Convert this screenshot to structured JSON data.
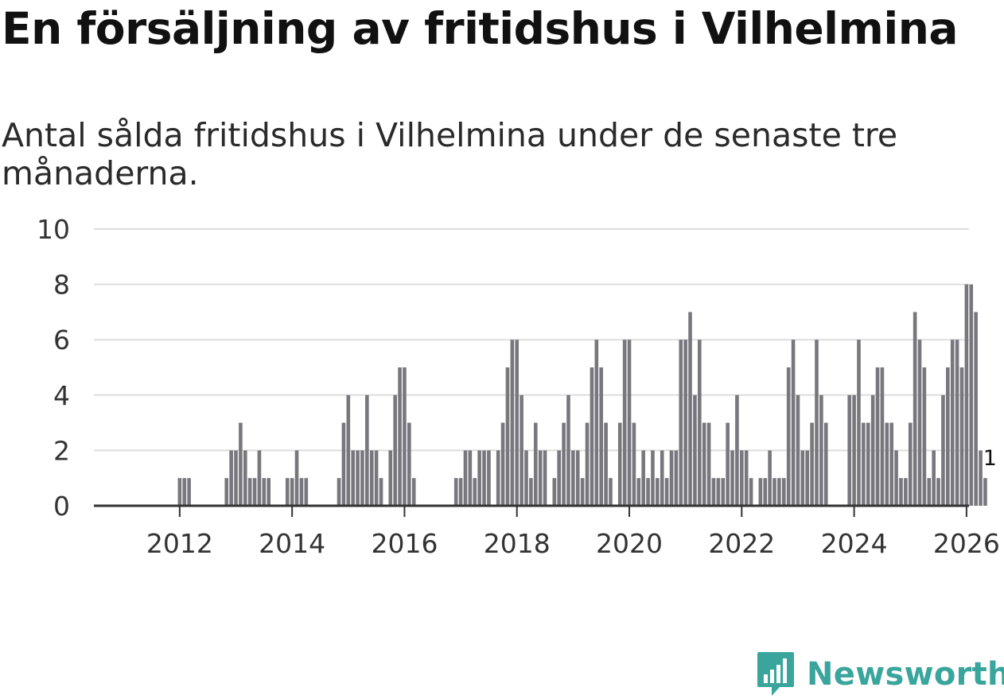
{
  "title": "En försäljning av fritidshus i Vilhelmina",
  "subtitle": "Antal sålda fritidshus i Vilhelmina under de senaste tre månaderna.",
  "logo": {
    "name": "Newsworthy",
    "icon": "newsworthy-logo-icon"
  },
  "colors": {
    "bar": "#77777d",
    "highlight": "#1fa19a",
    "grid": "#dddddd",
    "axis": "#333333",
    "logo": "#3aa59c"
  },
  "chart_data": {
    "type": "bar",
    "title": "",
    "xlabel": "",
    "ylabel": "",
    "ylim": [
      0,
      10
    ],
    "y_ticks": [
      "0",
      "2",
      "4",
      "6",
      "8",
      "10"
    ],
    "x_ticks": [
      "2012",
      "2014",
      "2016",
      "2018",
      "2020",
      "2022",
      "2024",
      "2026"
    ],
    "x_start": "2011-03",
    "frequency": "monthly",
    "values": [
      0,
      0,
      0,
      0,
      0,
      0,
      0,
      0,
      0,
      0,
      1,
      1,
      1,
      0,
      0,
      0,
      0,
      0,
      0,
      0,
      1,
      2,
      2,
      3,
      2,
      1,
      1,
      2,
      1,
      1,
      0,
      0,
      0,
      1,
      1,
      2,
      1,
      1,
      0,
      0,
      0,
      0,
      0,
      0,
      1,
      3,
      4,
      2,
      2,
      2,
      4,
      2,
      2,
      1,
      0,
      2,
      4,
      5,
      5,
      3,
      1,
      0,
      0,
      0,
      0,
      0,
      0,
      0,
      0,
      1,
      1,
      2,
      2,
      1,
      2,
      2,
      2,
      0,
      2,
      3,
      5,
      6,
      6,
      4,
      2,
      1,
      3,
      2,
      2,
      0,
      1,
      2,
      3,
      4,
      2,
      2,
      1,
      3,
      5,
      6,
      5,
      3,
      1,
      0,
      3,
      6,
      6,
      3,
      1,
      2,
      1,
      2,
      1,
      2,
      1,
      2,
      2,
      6,
      6,
      7,
      4,
      6,
      3,
      3,
      1,
      1,
      1,
      3,
      2,
      4,
      2,
      2,
      1,
      0,
      1,
      1,
      2,
      1,
      1,
      1,
      5,
      6,
      4,
      2,
      2,
      3,
      6,
      4,
      3,
      0,
      0,
      0,
      0,
      4,
      4,
      6,
      3,
      3,
      4,
      5,
      5,
      3,
      3,
      2,
      1,
      1,
      3,
      7,
      6,
      5,
      1,
      2,
      1,
      4,
      5,
      6,
      6,
      5,
      8,
      8,
      7,
      2,
      1
    ],
    "highlight": {
      "index": 183,
      "value": 1,
      "label": "1"
    }
  }
}
